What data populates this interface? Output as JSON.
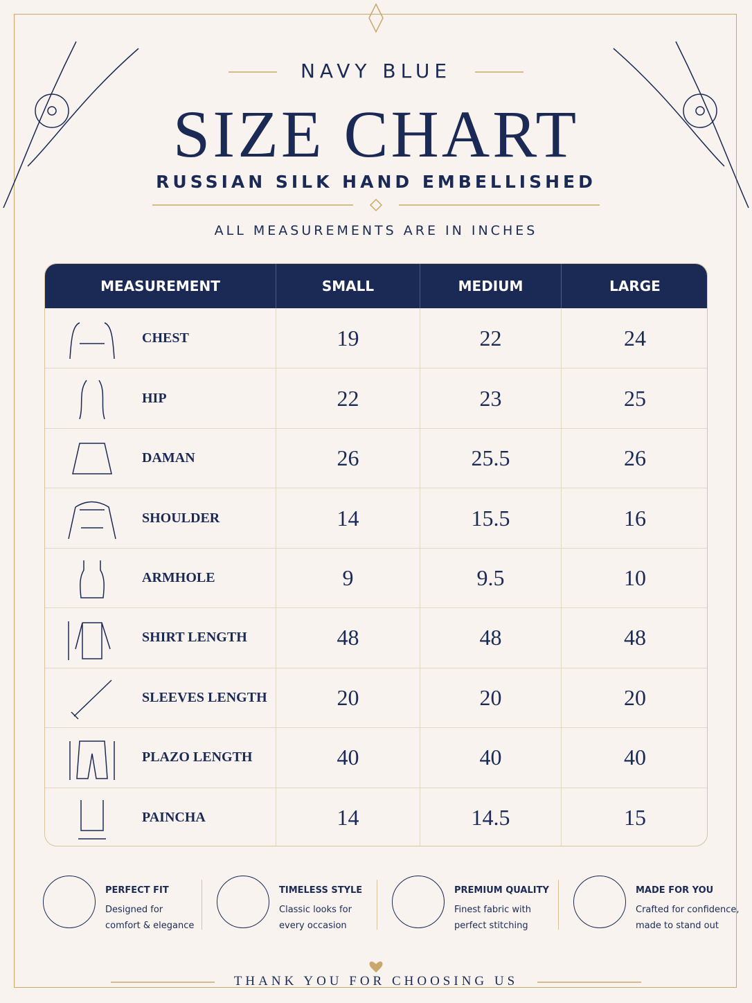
{
  "header": {
    "eyebrow": "NAVY BLUE",
    "title": "SIZE CHART",
    "subtitle": "RUSSIAN SILK HAND EMBELLISHED",
    "note": "ALL MEASUREMENTS ARE IN INCHES"
  },
  "table": {
    "columns": [
      "MEASUREMENT",
      "SMALL",
      "MEDIUM",
      "LARGE"
    ],
    "rows": [
      [
        "CHEST",
        19,
        22,
        24
      ],
      [
        "HIP",
        22,
        23,
        25
      ],
      [
        "DAMAN",
        26,
        25.5,
        26
      ],
      [
        "SHOULDER",
        14,
        15.5,
        16
      ],
      [
        "ARMHOLE",
        9,
        9.5,
        10
      ],
      [
        "SHIRT LENGTH",
        48,
        48,
        48
      ],
      [
        "SLEEVES LENGTH",
        20,
        20,
        20
      ],
      [
        "PLAZO LENGTH",
        40,
        40,
        40
      ],
      [
        "PAINCHA",
        14,
        14.5,
        15
      ]
    ]
  },
  "features": [
    {
      "title": "PERFECT FIT",
      "lines": [
        "Designed for",
        "comfort & elegance"
      ]
    },
    {
      "title": "TIMELESS STYLE",
      "lines": [
        "Classic looks for",
        "every occasion"
      ]
    },
    {
      "title": "PREMIUM QUALITY",
      "lines": [
        "Finest fabric with",
        "perfect stitching"
      ]
    },
    {
      "title": "MADE FOR YOU",
      "lines": [
        "Crafted for confidence,",
        "made to stand out"
      ]
    }
  ],
  "footer": "THANK YOU FOR CHOOSING US"
}
